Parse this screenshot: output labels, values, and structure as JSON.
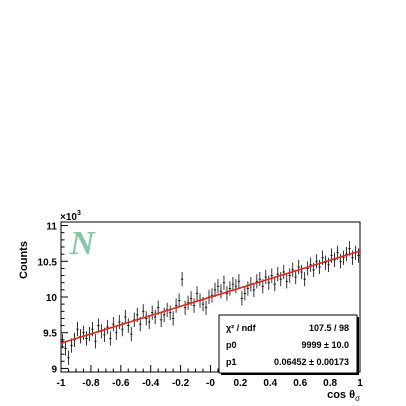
{
  "chart_data": {
    "type": "scatter",
    "title": "",
    "xlabel": "cos θσ",
    "xlabel_main": "cos θ",
    "xlabel_sub": "σ",
    "ylabel": "Counts",
    "y_multiplier": "×10",
    "y_multiplier_exp": "3",
    "xlim": [
      -1,
      1
    ],
    "ylim": [
      8.95,
      11.05
    ],
    "x_ticks": [
      -1,
      -0.8,
      -0.6,
      -0.4,
      -0.2,
      0,
      0.2,
      0.4,
      0.6,
      0.8,
      1
    ],
    "x_tick_labels": [
      "-1",
      "-0.8",
      "-0.6",
      "-0.4",
      "-0.2",
      "-0",
      "0.2",
      "0.4",
      "0.6",
      "0.8",
      "1"
    ],
    "y_ticks": [
      9,
      9.5,
      10,
      10.5,
      11
    ],
    "y_tick_labels": [
      "9",
      "9.5",
      "10",
      "10.5",
      "11"
    ],
    "grid": false,
    "series": [
      {
        "x": [
          -0.99,
          -0.97,
          -0.95,
          -0.93,
          -0.91,
          -0.89,
          -0.87,
          -0.85,
          -0.83,
          -0.81,
          -0.79,
          -0.77,
          -0.75,
          -0.73,
          -0.71,
          -0.69,
          -0.67,
          -0.65,
          -0.63,
          -0.61,
          -0.59,
          -0.57,
          -0.55,
          -0.53,
          -0.51,
          -0.49,
          -0.47,
          -0.45,
          -0.43,
          -0.41,
          -0.39,
          -0.37,
          -0.35,
          -0.33,
          -0.31,
          -0.29,
          -0.27,
          -0.25,
          -0.23,
          -0.21,
          -0.19,
          -0.17,
          -0.15,
          -0.13,
          -0.11,
          -0.09,
          -0.07,
          -0.05,
          -0.03,
          -0.01,
          0.01,
          0.03,
          0.05,
          0.07,
          0.09,
          0.11,
          0.13,
          0.15,
          0.17,
          0.19,
          0.21,
          0.23,
          0.25,
          0.27,
          0.29,
          0.31,
          0.33,
          0.35,
          0.37,
          0.39,
          0.41,
          0.43,
          0.45,
          0.47,
          0.49,
          0.51,
          0.53,
          0.55,
          0.57,
          0.59,
          0.61,
          0.63,
          0.65,
          0.67,
          0.69,
          0.71,
          0.73,
          0.75,
          0.77,
          0.79,
          0.81,
          0.83,
          0.85,
          0.87,
          0.89,
          0.91,
          0.93,
          0.95,
          0.97,
          0.99
        ],
        "y": [
          9.38,
          9.28,
          9.15,
          9.32,
          9.4,
          9.55,
          9.45,
          9.5,
          9.42,
          9.48,
          9.55,
          9.38,
          9.6,
          9.52,
          9.47,
          9.58,
          9.42,
          9.62,
          9.5,
          9.65,
          9.55,
          9.72,
          9.6,
          9.48,
          9.68,
          9.75,
          9.62,
          9.8,
          9.7,
          9.65,
          9.78,
          9.72,
          9.85,
          9.68,
          9.75,
          9.82,
          9.78,
          9.7,
          9.88,
          9.95,
          10.25,
          9.85,
          9.92,
          9.98,
          9.88,
          10.05,
          9.95,
          9.9,
          9.85,
          10.0,
          10.02,
          10.1,
          10.15,
          10.08,
          10.2,
          10.05,
          10.12,
          10.18,
          10.15,
          10.22,
          9.98,
          10.05,
          10.12,
          10.18,
          10.1,
          10.22,
          10.25,
          10.15,
          10.28,
          10.2,
          10.3,
          10.18,
          10.32,
          10.25,
          10.35,
          10.22,
          10.3,
          10.38,
          10.28,
          10.42,
          10.35,
          10.25,
          10.4,
          10.45,
          10.38,
          10.5,
          10.42,
          10.55,
          10.48,
          10.45,
          10.58,
          10.52,
          10.62,
          10.5,
          10.55,
          10.6,
          10.68,
          10.55,
          10.62,
          10.58
        ],
        "err": 0.1
      }
    ],
    "fit": {
      "color": "#e8241a",
      "p0": 9999,
      "p1": 0.06452
    },
    "stats": {
      "chi2_label": "χ² / ndf",
      "chi2_value": "107.5 / 98",
      "p0_label": "p0",
      "p0_value": "9999 ± 10.0",
      "p1_label": "p1",
      "p1_value": "0.06452 ± 0.00173"
    },
    "logo_text": "N",
    "colors": {
      "axis": "#000000",
      "points": "#000000",
      "fit_line": "#e8241a",
      "logo": "#7fc9a6"
    }
  }
}
